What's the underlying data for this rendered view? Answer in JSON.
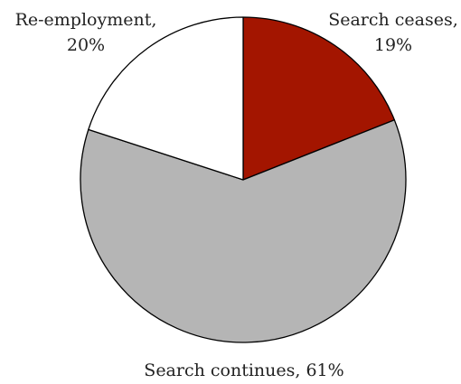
{
  "chart_data": {
    "type": "pie",
    "start_angle_deg": 0,
    "direction": "clockwise",
    "slices": [
      {
        "label": "Search ceases,",
        "value_text": "19%",
        "value": 19,
        "color": "#a31500"
      },
      {
        "label": "Search continues, 61%",
        "value_text": "",
        "value": 61,
        "color": "#b5b5b5"
      },
      {
        "label": "Re-employment,",
        "value_text": "20%",
        "value": 20,
        "color": "#ffffff"
      }
    ],
    "edge_color": "#000000"
  }
}
